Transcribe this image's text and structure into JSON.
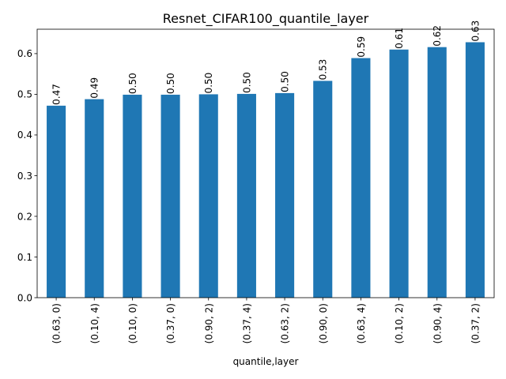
{
  "chart_data": {
    "type": "bar",
    "title": "Resnet_CIFAR100_quantile_layer",
    "xlabel": "quantile,layer",
    "ylabel": "",
    "categories": [
      "(0.63, 0)",
      "(0.10, 4)",
      "(0.10, 0)",
      "(0.37, 0)",
      "(0.90, 2)",
      "(0.37, 4)",
      "(0.63, 2)",
      "(0.90, 0)",
      "(0.63, 4)",
      "(0.10, 2)",
      "(0.90, 4)",
      "(0.37, 2)"
    ],
    "values": [
      0.472,
      0.488,
      0.499,
      0.499,
      0.5,
      0.501,
      0.503,
      0.533,
      0.589,
      0.61,
      0.616,
      0.628
    ],
    "data_labels": [
      "0.47",
      "0.49",
      "0.50",
      "0.50",
      "0.50",
      "0.50",
      "0.50",
      "0.53",
      "0.59",
      "0.61",
      "0.62",
      "0.63"
    ],
    "yticks": [
      0.0,
      0.1,
      0.2,
      0.3,
      0.4,
      0.5,
      0.6
    ],
    "ytick_labels": [
      "0.0",
      "0.1",
      "0.2",
      "0.3",
      "0.4",
      "0.5",
      "0.6"
    ],
    "ylim": [
      0,
      0.66
    ],
    "grid": false,
    "legend": "none",
    "bar_color": "#1f77b4"
  }
}
